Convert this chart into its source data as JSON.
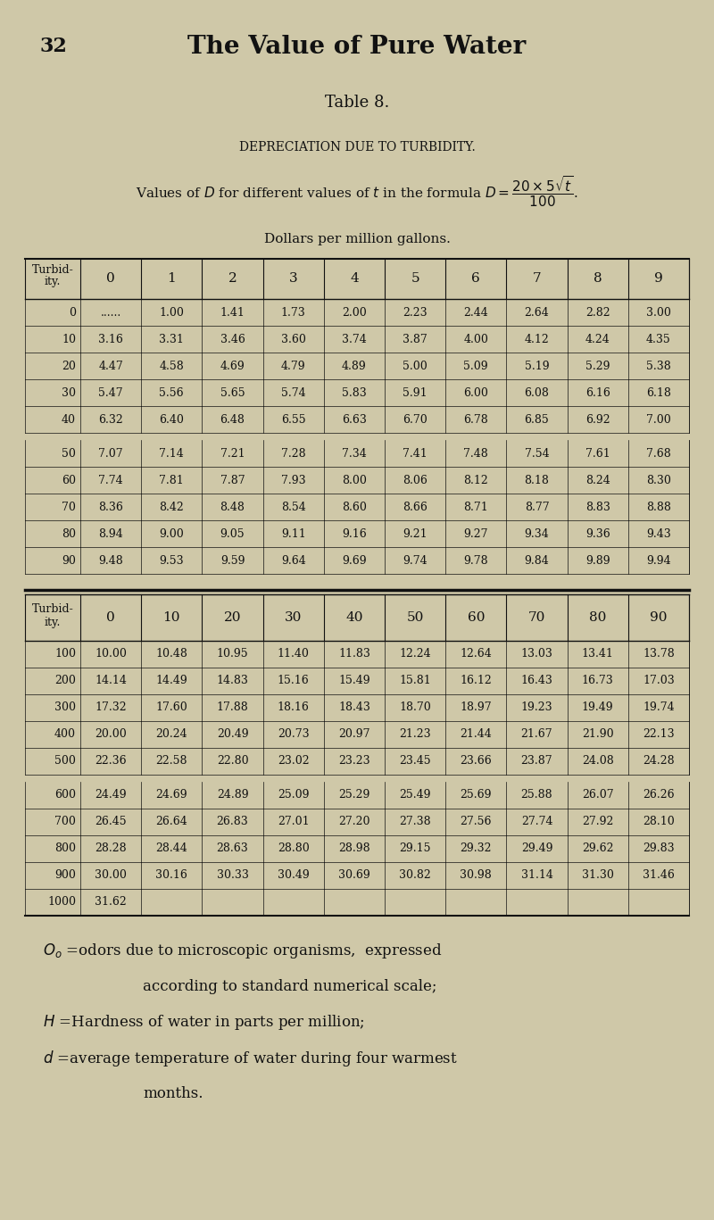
{
  "bg_color": "#cfc8a8",
  "text_color": "#111111",
  "page_number": "32",
  "title": "The Value of Pure Water",
  "table_title": "Table 8.",
  "subtitle1": "DEPRECIATION DUE TO TURBIDITY.",
  "subtitle3": "Dollars per million gallons.",
  "table1_col_header": [
    "0",
    "1",
    "2",
    "3",
    "4",
    "5",
    "6",
    "7",
    "8",
    "9"
  ],
  "table1_row_labels": [
    "0",
    "10",
    "20",
    "30",
    "40",
    "50",
    "60",
    "70",
    "80",
    "90"
  ],
  "table1_data": [
    [
      "......",
      "1.00",
      "1.41",
      "1.73",
      "2.00",
      "2.23",
      "2.44",
      "2.64",
      "2.82",
      "3.00"
    ],
    [
      "3.16",
      "3.31",
      "3.46",
      "3.60",
      "3.74",
      "3.87",
      "4.00",
      "4.12",
      "4.24",
      "4.35"
    ],
    [
      "4.47",
      "4.58",
      "4.69",
      "4.79",
      "4.89",
      "5.00",
      "5.09",
      "5.19",
      "5.29",
      "5.38"
    ],
    [
      "5.47",
      "5.56",
      "5.65",
      "5.74",
      "5.83",
      "5.91",
      "6.00",
      "6.08",
      "6.16",
      "6.18"
    ],
    [
      "6.32",
      "6.40",
      "6.48",
      "6.55",
      "6.63",
      "6.70",
      "6.78",
      "6.85",
      "6.92",
      "7.00"
    ],
    [
      "7.07",
      "7.14",
      "7.21",
      "7.28",
      "7.34",
      "7.41",
      "7.48",
      "7.54",
      "7.61",
      "7.68"
    ],
    [
      "7.74",
      "7.81",
      "7.87",
      "7.93",
      "8.00",
      "8.06",
      "8.12",
      "8.18",
      "8.24",
      "8.30"
    ],
    [
      "8.36",
      "8.42",
      "8.48",
      "8.54",
      "8.60",
      "8.66",
      "8.71",
      "8.77",
      "8.83",
      "8.88"
    ],
    [
      "8.94",
      "9.00",
      "9.05",
      "9.11",
      "9.16",
      "9.21",
      "9.27",
      "9.34",
      "9.36",
      "9.43"
    ],
    [
      "9.48",
      "9.53",
      "9.59",
      "9.64",
      "9.69",
      "9.74",
      "9.78",
      "9.84",
      "9.89",
      "9.94"
    ]
  ],
  "table2_col_header": [
    "0",
    "10",
    "20",
    "30",
    "40",
    "50",
    "60",
    "70",
    "80",
    "90"
  ],
  "table2_row_labels": [
    "100",
    "200",
    "300",
    "400",
    "500",
    "600",
    "700",
    "800",
    "900",
    "1000"
  ],
  "table2_data": [
    [
      "10.00",
      "10.48",
      "10.95",
      "11.40",
      "11.83",
      "12.24",
      "12.64",
      "13.03",
      "13.41",
      "13.78"
    ],
    [
      "14.14",
      "14.49",
      "14.83",
      "15.16",
      "15.49",
      "15.81",
      "16.12",
      "16.43",
      "16.73",
      "17.03"
    ],
    [
      "17.32",
      "17.60",
      "17.88",
      "18.16",
      "18.43",
      "18.70",
      "18.97",
      "19.23",
      "19.49",
      "19.74"
    ],
    [
      "20.00",
      "20.24",
      "20.49",
      "20.73",
      "20.97",
      "21.23",
      "21.44",
      "21.67",
      "21.90",
      "22.13"
    ],
    [
      "22.36",
      "22.58",
      "22.80",
      "23.02",
      "23.23",
      "23.45",
      "23.66",
      "23.87",
      "24.08",
      "24.28"
    ],
    [
      "24.49",
      "24.69",
      "24.89",
      "25.09",
      "25.29",
      "25.49",
      "25.69",
      "25.88",
      "26.07",
      "26.26"
    ],
    [
      "26.45",
      "26.64",
      "26.83",
      "27.01",
      "27.20",
      "27.38",
      "27.56",
      "27.74",
      "27.92",
      "28.10"
    ],
    [
      "28.28",
      "28.44",
      "28.63",
      "28.80",
      "28.98",
      "29.15",
      "29.32",
      "29.49",
      "29.62",
      "29.83"
    ],
    [
      "30.00",
      "30.16",
      "30.33",
      "30.49",
      "30.69",
      "30.82",
      "30.98",
      "31.14",
      "31.30",
      "31.46"
    ],
    [
      "31.62",
      "",
      "",
      "",
      "",
      "",
      "",
      "",
      "",
      ""
    ]
  ]
}
